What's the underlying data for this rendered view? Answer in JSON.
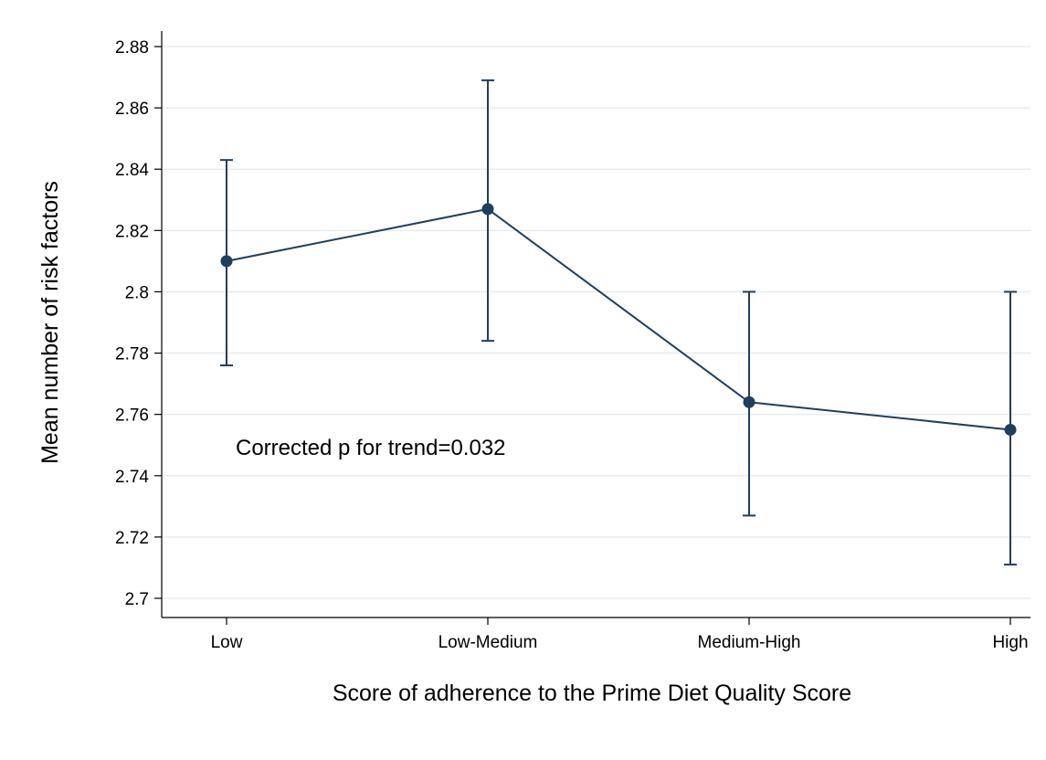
{
  "chart_data": {
    "type": "line",
    "title": "",
    "xlabel": "Score of adherence to the Prime Diet Quality Score",
    "ylabel": "Mean number of risk factors",
    "categories": [
      "Low",
      "Low-Medium",
      "Medium-High",
      "High"
    ],
    "series": [
      {
        "values": [
          2.81,
          2.827,
          2.764,
          2.755
        ],
        "ci_lower": [
          2.776,
          2.784,
          2.727,
          2.711
        ],
        "ci_upper": [
          2.843,
          2.869,
          2.8,
          2.8
        ]
      }
    ],
    "ylim": [
      2.7,
      2.88
    ],
    "yticks": [
      2.7,
      2.72,
      2.74,
      2.76,
      2.78,
      2.8,
      2.82,
      2.84,
      2.86,
      2.88
    ],
    "ytick_labels": [
      "2.7",
      "2.72",
      "2.74",
      "2.76",
      "2.78",
      "2.8",
      "2.82",
      "2.84",
      "2.86",
      "2.88"
    ],
    "grid": true,
    "annotation": "Corrected p for trend=0.032",
    "colors": {
      "series": "#1f3f5f",
      "grid": "#e8ecef",
      "axis": "#000000"
    }
  }
}
